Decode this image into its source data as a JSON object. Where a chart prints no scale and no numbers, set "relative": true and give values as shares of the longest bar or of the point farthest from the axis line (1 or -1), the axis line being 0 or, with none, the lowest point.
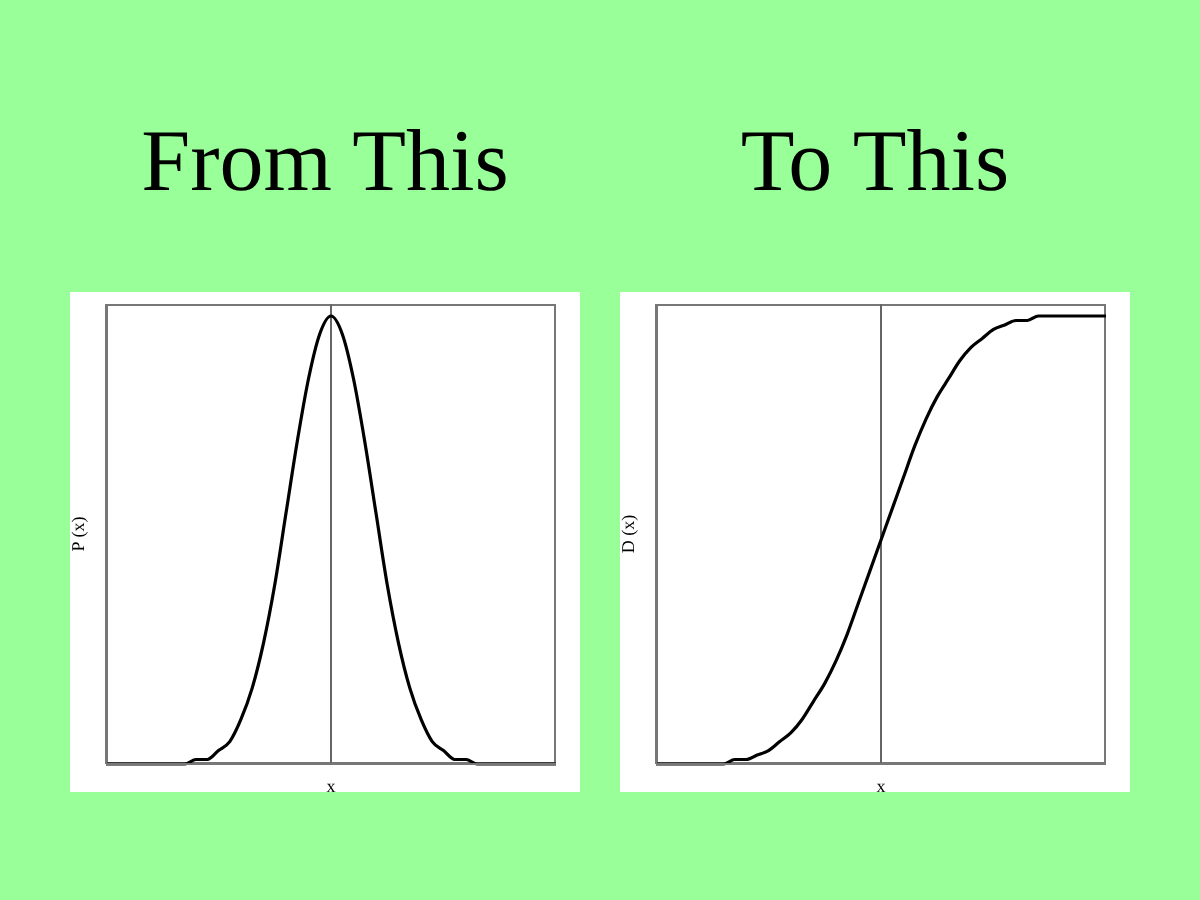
{
  "chart_data": [
    {
      "type": "line",
      "title": "From This",
      "xlabel": "x",
      "ylabel": "P (x)",
      "relative": true,
      "color": "#000000",
      "categories": [
        null,
        null,
        null,
        null,
        null,
        null,
        null,
        null,
        null,
        null,
        null,
        null,
        null,
        null,
        null,
        null,
        null,
        null,
        null,
        null,
        null,
        null,
        null,
        null,
        null,
        null,
        null,
        null,
        null,
        null,
        null,
        null,
        null,
        null,
        null,
        null,
        null,
        null,
        null,
        null,
        null
      ],
      "values": [
        0,
        0,
        0,
        0,
        0,
        0,
        0,
        0,
        0.01,
        0.01,
        0.03,
        0.05,
        0.1,
        0.17,
        0.27,
        0.4,
        0.56,
        0.72,
        0.86,
        0.96,
        1,
        0.96,
        0.86,
        0.72,
        0.56,
        0.4,
        0.27,
        0.17,
        0.1,
        0.05,
        0.03,
        0.01,
        0.01,
        0,
        0,
        0,
        0,
        0,
        0,
        0,
        0
      ]
    },
    {
      "type": "line",
      "title": "To This",
      "xlabel": "x",
      "ylabel": "D (x)",
      "relative": true,
      "color": "#000000",
      "categories": [
        null,
        null,
        null,
        null,
        null,
        null,
        null,
        null,
        null,
        null,
        null,
        null,
        null,
        null,
        null,
        null,
        null,
        null,
        null,
        null,
        null,
        null,
        null,
        null,
        null,
        null,
        null,
        null,
        null,
        null,
        null,
        null,
        null,
        null,
        null,
        null,
        null,
        null,
        null,
        null,
        null
      ],
      "values": [
        0,
        0,
        0,
        0,
        0,
        0,
        0,
        0.01,
        0.01,
        0.02,
        0.03,
        0.05,
        0.07,
        0.1,
        0.14,
        0.18,
        0.23,
        0.29,
        0.36,
        0.43,
        0.5,
        0.57,
        0.64,
        0.71,
        0.77,
        0.82,
        0.86,
        0.9,
        0.93,
        0.95,
        0.97,
        0.98,
        0.99,
        0.99,
        1,
        1,
        1,
        1,
        1,
        1,
        1
      ]
    }
  ]
}
